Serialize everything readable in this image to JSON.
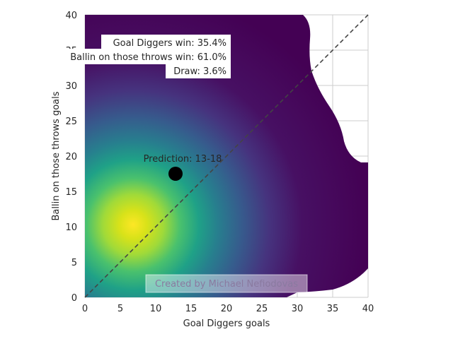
{
  "chart_data": {
    "type": "heatmap",
    "subtype": "kernel-density",
    "xlabel": "Goal Diggers goals",
    "ylabel": "Ballin on those throws goals",
    "xlim": [
      0,
      40
    ],
    "ylim": [
      0,
      40
    ],
    "x_ticks": [
      0,
      5,
      10,
      15,
      20,
      25,
      30,
      35,
      40
    ],
    "y_ticks": [
      0,
      5,
      10,
      15,
      20,
      25,
      30,
      35,
      40
    ],
    "grid": true,
    "colormap": "viridis",
    "density_peak": {
      "x": 7,
      "y": 10
    },
    "diagonal_line": {
      "from": [
        0,
        0
      ],
      "to": [
        40,
        40
      ],
      "style": "dashed",
      "color": "#444444"
    },
    "prediction_point": {
      "x": 12.8,
      "y": 17.5,
      "label": "Prediction: 13-18"
    },
    "outcome_probabilities": [
      {
        "label": "Goal Diggers win: 35.4%"
      },
      {
        "label": "Ballin on those throws win: 61.0%"
      },
      {
        "label": "Draw: 3.6%"
      }
    ],
    "credit": "Created by Michael Nefiodovas"
  }
}
